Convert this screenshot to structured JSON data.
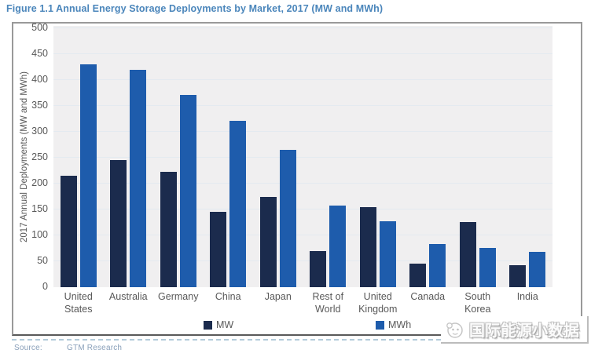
{
  "title": "Figure 1.1 Annual Energy Storage Deployments by Market, 2017  (MW and MWh)",
  "source": {
    "label": "Source:",
    "value": "GTM Research"
  },
  "watermark_text": "国际能源小数据",
  "colors": {
    "title_text": "#4b86bb",
    "mw_bar": "#1b2b4d",
    "mwh_bar": "#1e5cac",
    "plot_background": "#f0eff0",
    "axis_text": "#595959",
    "source_text": "#8aa0ba",
    "chart_border": "#999999"
  },
  "chart_data": {
    "type": "bar",
    "title": "Figure 1.1 Annual Energy Storage Deployments by Market, 2017 (MW and MWh)",
    "xlabel": "",
    "ylabel": "2017 Annual Deployments (MW and MWh)",
    "ylim": [
      0,
      500
    ],
    "ytick_step": 50,
    "grid": true,
    "legend_position": "bottom",
    "categories": [
      "United States",
      "Australia",
      "Germany",
      "China",
      "Japan",
      "Rest of World",
      "United Kingdom",
      "Canada",
      "South Korea",
      "India"
    ],
    "category_label_lines": [
      [
        "United",
        "States"
      ],
      [
        "Australia"
      ],
      [
        "Germany"
      ],
      [
        "China"
      ],
      [
        "Japan"
      ],
      [
        "Rest of",
        "World"
      ],
      [
        "United",
        "Kingdom"
      ],
      [
        "Canada"
      ],
      [
        "South",
        "Korea"
      ],
      [
        "India"
      ]
    ],
    "series": [
      {
        "name": "MW",
        "color": "#1b2b4d",
        "values": [
          215,
          246,
          222,
          146,
          175,
          70,
          155,
          45,
          126,
          42
        ]
      },
      {
        "name": "MWh",
        "color": "#1e5cac",
        "values": [
          430,
          420,
          371,
          321,
          265,
          157,
          128,
          84,
          76,
          68
        ]
      }
    ]
  }
}
